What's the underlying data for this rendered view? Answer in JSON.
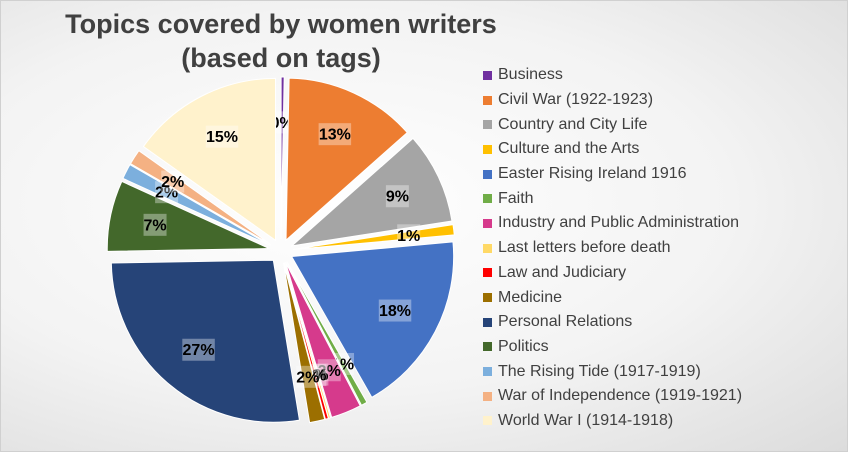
{
  "chart_data": {
    "type": "pie",
    "title": [
      "Topics covered by women writers",
      "(based on tags)"
    ],
    "legend_placement": "right",
    "exploded": true,
    "slices": [
      {
        "name": "Business",
        "value": 0.3,
        "label": "0%",
        "color": "#7030a0"
      },
      {
        "name": "Civil War (1922-1923)",
        "value": 13,
        "label": "13%",
        "color": "#ed7d31"
      },
      {
        "name": "Country and City Life",
        "value": 9,
        "label": "9%",
        "color": "#a5a5a5"
      },
      {
        "name": "Culture and the Arts",
        "value": 1,
        "label": "1%",
        "color": "#ffc000"
      },
      {
        "name": "Easter Rising Ireland 1916",
        "value": 18,
        "label": "18%",
        "color": "#4472c4"
      },
      {
        "name": "Faith",
        "value": 0.6,
        "label": "1%",
        "color": "#70ad47"
      },
      {
        "name": "Industry and Public Administration",
        "value": 3,
        "label": "3%",
        "color": "#d63a8c"
      },
      {
        "name": "Last letters before death",
        "value": 0.2,
        "label": "0%",
        "color": "#ffd966"
      },
      {
        "name": "Law and Judiciary",
        "value": 0.3,
        "label": "0%",
        "color": "#ff0000"
      },
      {
        "name": "Medicine",
        "value": 1.5,
        "label": "2%",
        "color": "#9c6f00"
      },
      {
        "name": "Personal Relations",
        "value": 27,
        "label": "27%",
        "color": "#264478"
      },
      {
        "name": "Politics",
        "value": 7,
        "label": "7%",
        "color": "#43682b"
      },
      {
        "name": "The Rising Tide (1917-1919)",
        "value": 1.5,
        "label": "2%",
        "color": "#7cafdd"
      },
      {
        "name": "War of Independence (1919-1921)",
        "value": 1.5,
        "label": "2%",
        "color": "#f4b183"
      },
      {
        "name": "World War I (1914-1918)",
        "value": 15,
        "label": "15%",
        "color": "#fff2cc"
      }
    ]
  }
}
